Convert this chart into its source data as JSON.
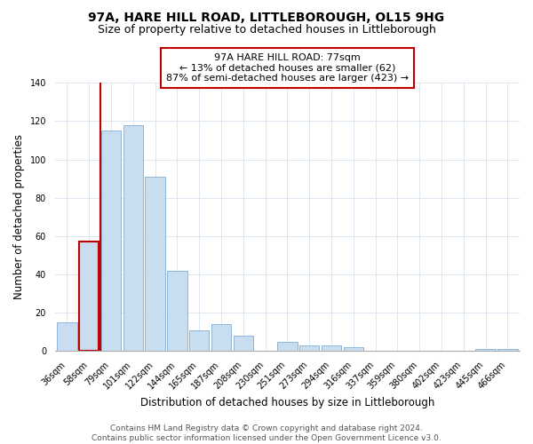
{
  "title": "97A, HARE HILL ROAD, LITTLEBOROUGH, OL15 9HG",
  "subtitle": "Size of property relative to detached houses in Littleborough",
  "xlabel": "Distribution of detached houses by size in Littleborough",
  "ylabel": "Number of detached properties",
  "categories": [
    "36sqm",
    "58sqm",
    "79sqm",
    "101sqm",
    "122sqm",
    "144sqm",
    "165sqm",
    "187sqm",
    "208sqm",
    "230sqm",
    "251sqm",
    "273sqm",
    "294sqm",
    "316sqm",
    "337sqm",
    "359sqm",
    "380sqm",
    "402sqm",
    "423sqm",
    "445sqm",
    "466sqm"
  ],
  "values": [
    15,
    57,
    115,
    118,
    91,
    42,
    11,
    14,
    8,
    0,
    5,
    3,
    3,
    2,
    0,
    0,
    0,
    0,
    0,
    1,
    1
  ],
  "bar_color": "#c9ddf0",
  "bar_edge_color": "#7eadd4",
  "highlight_bar_index": 1,
  "highlight_edge_color": "#c00000",
  "vline_color": "#c00000",
  "vline_x": 1.5,
  "ylim": [
    0,
    140
  ],
  "yticks": [
    0,
    20,
    40,
    60,
    80,
    100,
    120,
    140
  ],
  "annotation_title": "97A HARE HILL ROAD: 77sqm",
  "annotation_line1": "← 13% of detached houses are smaller (62)",
  "annotation_line2": "87% of semi-detached houses are larger (423) →",
  "annotation_box_color": "#ffffff",
  "annotation_box_edge": "#c00000",
  "footer_line1": "Contains HM Land Registry data © Crown copyright and database right 2024.",
  "footer_line2": "Contains public sector information licensed under the Open Government Licence v3.0.",
  "bg_color": "#ffffff",
  "grid_color": "#dce6f1",
  "title_fontsize": 10,
  "subtitle_fontsize": 9,
  "axis_label_fontsize": 8.5,
  "tick_fontsize": 7,
  "annotation_fontsize": 8,
  "footer_fontsize": 6.5
}
